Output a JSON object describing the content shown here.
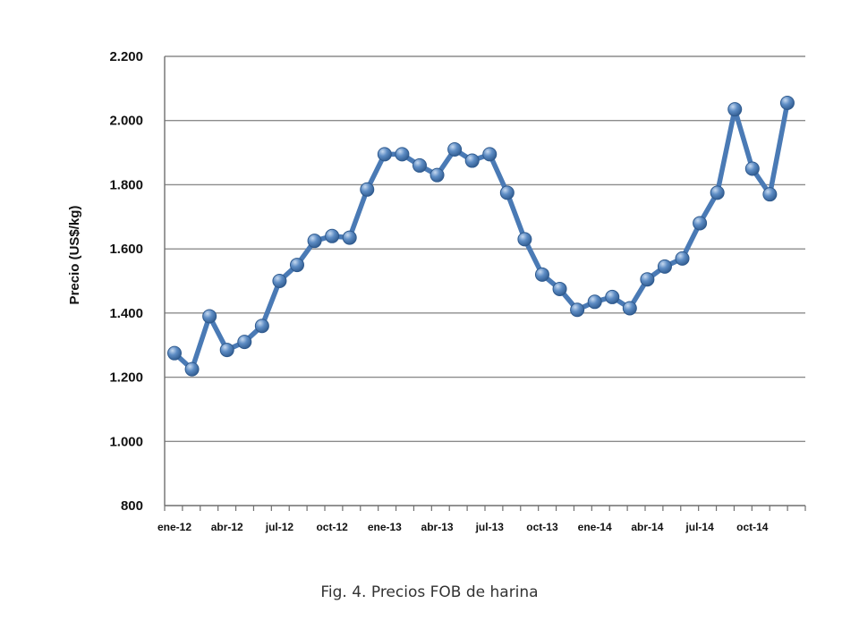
{
  "caption": "Fig. 4. Precios FOB de harina",
  "chart_data": {
    "type": "line",
    "title": "",
    "xlabel": "",
    "ylabel": "Precio  (US$/kg)",
    "ylim": [
      800,
      2200
    ],
    "y_ticks": [
      {
        "value": 800,
        "label": "800"
      },
      {
        "value": 1000,
        "label": "1.000"
      },
      {
        "value": 1200,
        "label": "1.200"
      },
      {
        "value": 1400,
        "label": "1.400"
      },
      {
        "value": 1600,
        "label": "1.600"
      },
      {
        "value": 1800,
        "label": "1.800"
      },
      {
        "value": 2000,
        "label": "2.000"
      },
      {
        "value": 2200,
        "label": "2.200"
      }
    ],
    "x_ticks": [
      {
        "index": 0,
        "label": "ene-12"
      },
      {
        "index": 3,
        "label": "abr-12"
      },
      {
        "index": 6,
        "label": "jul-12"
      },
      {
        "index": 9,
        "label": "oct-12"
      },
      {
        "index": 12,
        "label": "ene-13"
      },
      {
        "index": 15,
        "label": "abr-13"
      },
      {
        "index": 18,
        "label": "jul-13"
      },
      {
        "index": 21,
        "label": "oct-13"
      },
      {
        "index": 24,
        "label": "ene-14"
      },
      {
        "index": 27,
        "label": "abr-14"
      },
      {
        "index": 30,
        "label": "jul-14"
      },
      {
        "index": 33,
        "label": "oct-14"
      }
    ],
    "grid": true,
    "line_color": "#4a7ab5",
    "series": [
      {
        "values": [
          1275,
          1225,
          1390,
          1285,
          1310,
          1360,
          1500,
          1550,
          1625,
          1640,
          1635,
          1785,
          1895,
          1895,
          1860,
          1830,
          1910,
          1875,
          1895,
          1775,
          1630,
          1520,
          1475,
          1410,
          1435,
          1450,
          1415,
          1505,
          1545,
          1570,
          1680,
          1775,
          2035,
          1850,
          1770,
          2055
        ]
      }
    ]
  }
}
